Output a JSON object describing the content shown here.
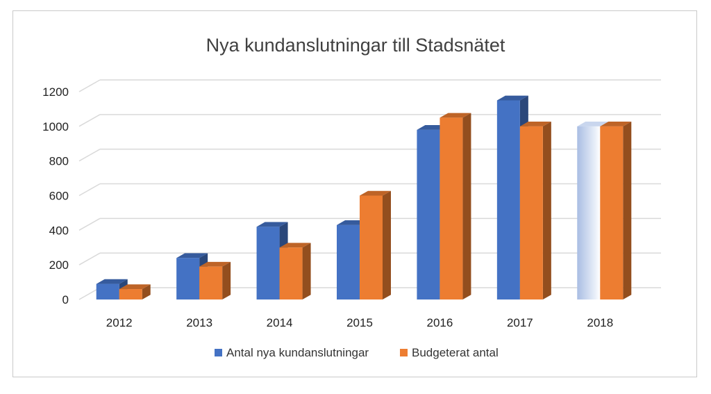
{
  "chart_data": {
    "type": "bar",
    "title": "Nya kundanslutningar till Stadsnätet",
    "categories": [
      "2012",
      "2013",
      "2014",
      "2015",
      "2016",
      "2017",
      "2018"
    ],
    "series": [
      {
        "name": "Antal nya kundanslutningar",
        "values": [
          90,
          240,
          420,
          430,
          980,
          1150,
          1000
        ],
        "color": "#4472C4"
      },
      {
        "name": "Budgeterat antal",
        "values": [
          60,
          190,
          300,
          600,
          1050,
          1000,
          1000
        ],
        "color": "#ED7D31"
      }
    ],
    "highlighted_bar": {
      "series": 0,
      "category": "2018",
      "style": "faded-gradient"
    },
    "yticks": [
      0,
      200,
      400,
      600,
      800,
      1000,
      1200
    ],
    "ylim": [
      0,
      1200
    ],
    "grid": true,
    "legend_position": "bottom",
    "style": "3d-clustered-column"
  }
}
